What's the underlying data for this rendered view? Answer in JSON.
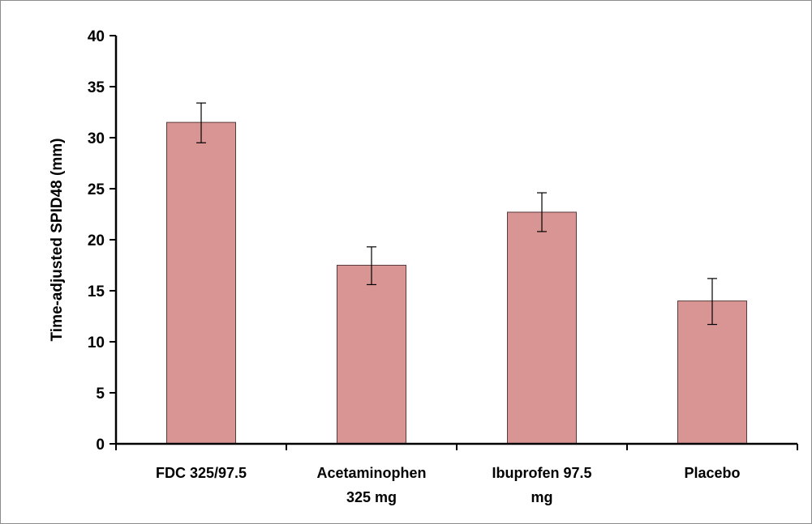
{
  "chart_data": {
    "type": "bar",
    "title": "",
    "xlabel": "",
    "ylabel": "Time-adjusted SPID48 (mm)",
    "categories": [
      [
        "FDC 325/97.5"
      ],
      [
        "Acetaminophen",
        "325 mg"
      ],
      [
        "Ibuprofen 97.5",
        "mg"
      ],
      [
        "Placebo"
      ]
    ],
    "values": [
      31.5,
      17.5,
      22.7,
      14.0
    ],
    "error_low": [
      29.5,
      15.6,
      20.8,
      11.7
    ],
    "error_high": [
      33.4,
      19.3,
      24.6,
      16.2
    ],
    "ylim": [
      0,
      40
    ],
    "yticks": [
      "0",
      "5",
      "10",
      "15",
      "20",
      "25",
      "30",
      "35",
      "40"
    ],
    "grid": false,
    "legend": "none",
    "bar_color": "#d99594",
    "bar_edge_color": "#5a3a3a"
  }
}
